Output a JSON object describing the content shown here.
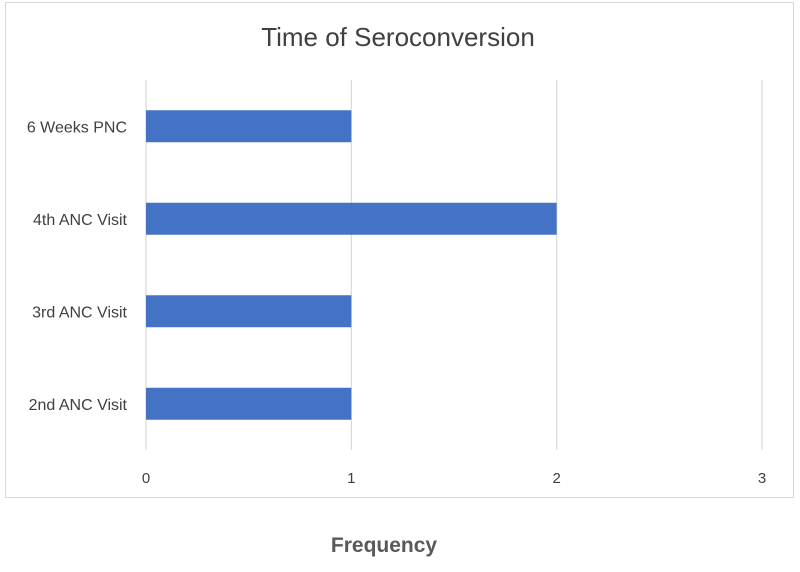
{
  "chart_data": {
    "type": "bar",
    "orientation": "horizontal",
    "title": "Time of Seroconversion",
    "xlabel": "Frequency",
    "ylabel": "",
    "categories": [
      "6 Weeks PNC",
      "4th ANC Visit",
      "3rd ANC Visit",
      "2nd ANC Visit"
    ],
    "values": [
      1,
      2,
      1,
      1
    ],
    "xlim": [
      0,
      3
    ],
    "x_ticks": [
      "0",
      "1",
      "2",
      "3"
    ],
    "grid": "vertical",
    "legend": "none",
    "bar_color": "#4472C4",
    "grid_color": "#d9d9d9"
  }
}
